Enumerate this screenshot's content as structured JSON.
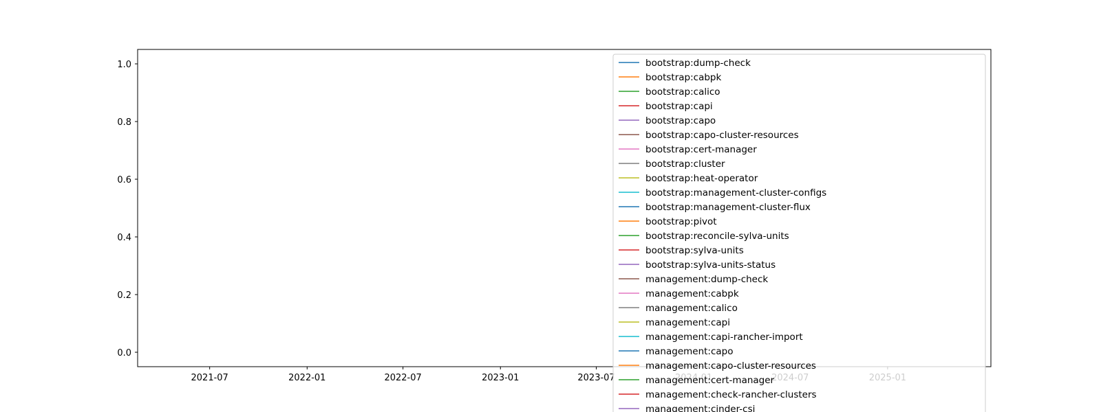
{
  "chart_data": {
    "type": "line",
    "title": "",
    "xlabel": "",
    "ylabel": "",
    "xlim": [
      "2021-02-15",
      "2025-07-15"
    ],
    "ylim": [
      -0.05,
      1.05
    ],
    "x_ticks": [
      "2021-07",
      "2022-01",
      "2022-07",
      "2023-01",
      "2023-07",
      "2024-01",
      "2024-07",
      "2025-01"
    ],
    "y_ticks": [
      "0.0",
      "0.2",
      "0.4",
      "0.6",
      "0.8",
      "1.0"
    ],
    "grid": false,
    "legend_position": "upper right",
    "series": [
      {
        "name": "bootstrap:dump-check",
        "color": "#1f77b4",
        "values": []
      },
      {
        "name": "bootstrap:cabpk",
        "color": "#ff7f0e",
        "values": []
      },
      {
        "name": "bootstrap:calico",
        "color": "#2ca02c",
        "values": []
      },
      {
        "name": "bootstrap:capi",
        "color": "#d62728",
        "values": []
      },
      {
        "name": "bootstrap:capo",
        "color": "#9467bd",
        "values": []
      },
      {
        "name": "bootstrap:capo-cluster-resources",
        "color": "#8c564b",
        "values": []
      },
      {
        "name": "bootstrap:cert-manager",
        "color": "#e377c2",
        "values": []
      },
      {
        "name": "bootstrap:cluster",
        "color": "#7f7f7f",
        "values": []
      },
      {
        "name": "bootstrap:heat-operator",
        "color": "#bcbd22",
        "values": []
      },
      {
        "name": "bootstrap:management-cluster-configs",
        "color": "#17becf",
        "values": []
      },
      {
        "name": "bootstrap:management-cluster-flux",
        "color": "#1f77b4",
        "values": []
      },
      {
        "name": "bootstrap:pivot",
        "color": "#ff7f0e",
        "values": []
      },
      {
        "name": "bootstrap:reconcile-sylva-units",
        "color": "#2ca02c",
        "values": []
      },
      {
        "name": "bootstrap:sylva-units",
        "color": "#d62728",
        "values": []
      },
      {
        "name": "bootstrap:sylva-units-status",
        "color": "#9467bd",
        "values": []
      },
      {
        "name": "management:dump-check",
        "color": "#8c564b",
        "values": []
      },
      {
        "name": "management:cabpk",
        "color": "#e377c2",
        "values": []
      },
      {
        "name": "management:calico",
        "color": "#7f7f7f",
        "values": []
      },
      {
        "name": "management:capi",
        "color": "#bcbd22",
        "values": []
      },
      {
        "name": "management:capi-rancher-import",
        "color": "#17becf",
        "values": []
      },
      {
        "name": "management:capo",
        "color": "#1f77b4",
        "values": []
      },
      {
        "name": "management:capo-cluster-resources",
        "color": "#ff7f0e",
        "values": []
      },
      {
        "name": "management:cert-manager",
        "color": "#2ca02c",
        "values": []
      },
      {
        "name": "management:check-rancher-clusters",
        "color": "#d62728",
        "values": []
      },
      {
        "name": "management:cinder-csi",
        "color": "#9467bd",
        "values": []
      }
    ]
  }
}
